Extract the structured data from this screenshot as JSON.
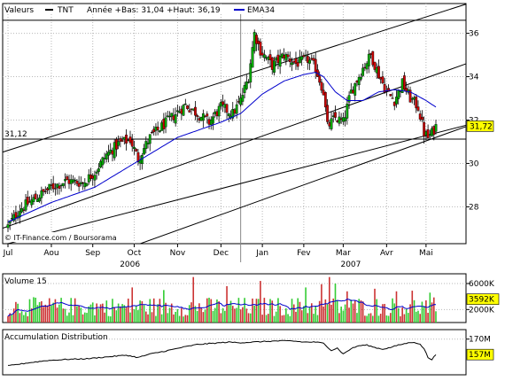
{
  "header": {
    "label_valeurs": "Valeurs",
    "ticker": "TNT",
    "range_text": "Année +Bas: 31,04 +Haut: 36,19",
    "ema_label": "EMA34",
    "colors": {
      "price": "#000000",
      "ema": "#0000cc"
    }
  },
  "source": "© IT-Finance.com / Boursorama",
  "ref_line": {
    "label": "31,12",
    "value": 31.12
  },
  "last_price": {
    "label": "31,72",
    "value": 31.72
  },
  "volume_panel": {
    "title": "Volume 15",
    "last_label": "3592K",
    "last_value": 3592
  },
  "ad_panel": {
    "title": "Accumulation Distribution",
    "last_label": "157M",
    "last_value": 157
  },
  "chart_data": [
    {
      "type": "candlestick",
      "title": "",
      "ylim": [
        26.3,
        36.8
      ],
      "y_ticks": [
        {
          "value": 28,
          "label": "28"
        },
        {
          "value": 30,
          "label": "30"
        },
        {
          "value": 32,
          "label": "32"
        },
        {
          "value": 34,
          "label": "34"
        },
        {
          "value": 36,
          "label": "36"
        }
      ],
      "x_months": [
        {
          "label": "Jul",
          "idx": 0
        },
        {
          "label": "Aou",
          "idx": 22
        },
        {
          "label": "Sep",
          "idx": 43
        },
        {
          "label": "Oct",
          "idx": 64
        },
        {
          "label": "Nov",
          "idx": 86
        },
        {
          "label": "Dec",
          "idx": 108
        },
        {
          "label": "Jan",
          "idx": 129
        },
        {
          "label": "Fev",
          "idx": 150
        },
        {
          "label": "Mar",
          "idx": 170
        },
        {
          "label": "Avr",
          "idx": 192
        },
        {
          "label": "Mai",
          "idx": 212
        }
      ],
      "x_years": [
        {
          "label": "2006",
          "idx": 56
        },
        {
          "label": "2007",
          "idx": 168
        }
      ],
      "year_divider_idx": 118,
      "num_days": 218,
      "close_path": [
        [
          0,
          27.1
        ],
        [
          6,
          27.9
        ],
        [
          14,
          28.4
        ],
        [
          22,
          28.9
        ],
        [
          30,
          29.2
        ],
        [
          38,
          29.1
        ],
        [
          44,
          29.6
        ],
        [
          50,
          30.4
        ],
        [
          56,
          30.9
        ],
        [
          62,
          31.1
        ],
        [
          66,
          30.2
        ],
        [
          72,
          31.2
        ],
        [
          78,
          31.7
        ],
        [
          84,
          32.2
        ],
        [
          90,
          32.7
        ],
        [
          96,
          32.3
        ],
        [
          102,
          31.9
        ],
        [
          108,
          32.6
        ],
        [
          114,
          32.3
        ],
        [
          118,
          32.9
        ],
        [
          122,
          34.0
        ],
        [
          125,
          36.0
        ],
        [
          128,
          35.2
        ],
        [
          134,
          34.5
        ],
        [
          140,
          35.0
        ],
        [
          146,
          34.6
        ],
        [
          152,
          34.8
        ],
        [
          156,
          34.4
        ],
        [
          160,
          33.3
        ],
        [
          162,
          31.7
        ],
        [
          166,
          32.1
        ],
        [
          170,
          31.9
        ],
        [
          174,
          33.3
        ],
        [
          180,
          34.4
        ],
        [
          184,
          35.0
        ],
        [
          188,
          34.1
        ],
        [
          192,
          33.3
        ],
        [
          196,
          32.9
        ],
        [
          200,
          33.7
        ],
        [
          204,
          33.0
        ],
        [
          208,
          32.6
        ],
        [
          211,
          31.4
        ],
        [
          213,
          31.2
        ],
        [
          215,
          31.4
        ],
        [
          217,
          31.72
        ]
      ],
      "ema_path": [
        [
          0,
          27.3
        ],
        [
          22,
          28.2
        ],
        [
          44,
          28.9
        ],
        [
          64,
          30.0
        ],
        [
          86,
          31.2
        ],
        [
          108,
          31.9
        ],
        [
          118,
          32.3
        ],
        [
          129,
          33.2
        ],
        [
          140,
          33.8
        ],
        [
          150,
          34.1
        ],
        [
          156,
          34.2
        ],
        [
          160,
          34.0
        ],
        [
          166,
          33.3
        ],
        [
          172,
          32.9
        ],
        [
          180,
          32.9
        ],
        [
          188,
          33.3
        ],
        [
          196,
          33.4
        ],
        [
          204,
          33.3
        ],
        [
          212,
          32.9
        ],
        [
          217,
          32.6
        ]
      ],
      "trend_lines": [
        {
          "name": "upper-channel",
          "p1": [
            0,
            30.6
          ],
          "p2": [
            217,
            36.9
          ]
        },
        {
          "name": "middle-channel",
          "p1": [
            0,
            27.1
          ],
          "p2": [
            217,
            34.1
          ]
        },
        {
          "name": "lower-channel",
          "p1": [
            0,
            26.3
          ],
          "p2": [
            217,
            31.4
          ]
        },
        {
          "name": "support-channel",
          "p1": [
            64,
            26.2
          ],
          "p2": [
            217,
            31.2
          ]
        }
      ],
      "top_line_value": 36.6
    },
    {
      "type": "bar",
      "title": "Volume 15",
      "unit": "K",
      "ylim": [
        0,
        7500
      ],
      "y_ticks": [
        {
          "value": 2000,
          "label": "2000K"
        },
        {
          "value": 6000,
          "label": "6000K"
        }
      ],
      "base_level": 2300,
      "spikes": [
        [
          63,
          5400
        ],
        [
          79,
          5000
        ],
        [
          94,
          7000
        ],
        [
          111,
          5600
        ],
        [
          128,
          6400
        ],
        [
          151,
          5400
        ],
        [
          159,
          5900
        ],
        [
          163,
          7000
        ],
        [
          166,
          6000
        ],
        [
          172,
          4800
        ],
        [
          186,
          5200
        ],
        [
          197,
          4800
        ],
        [
          205,
          4900
        ],
        [
          214,
          4600
        ]
      ],
      "colors": {
        "up": "#33cc33",
        "down": "#cc3333",
        "average": "#0000cc"
      }
    },
    {
      "type": "line",
      "title": "Accumulation Distribution",
      "unit": "M",
      "ylim": [
        140,
        178
      ],
      "y_ticks": [
        {
          "value": 170,
          "label": "170M"
        }
      ],
      "path": [
        [
          0,
          147.5
        ],
        [
          10,
          150
        ],
        [
          20,
          152
        ],
        [
          30,
          153
        ],
        [
          40,
          153.5
        ],
        [
          50,
          155
        ],
        [
          60,
          156.5
        ],
        [
          66,
          154.5
        ],
        [
          72,
          157.5
        ],
        [
          80,
          160
        ],
        [
          88,
          163
        ],
        [
          96,
          165.5
        ],
        [
          104,
          166.5
        ],
        [
          112,
          167.5
        ],
        [
          118,
          167
        ],
        [
          124,
          167.5
        ],
        [
          130,
          168
        ],
        [
          138,
          168.5
        ],
        [
          144,
          168.5
        ],
        [
          150,
          167.5
        ],
        [
          156,
          167.5
        ],
        [
          160,
          166.5
        ],
        [
          164,
          160.5
        ],
        [
          167,
          162.5
        ],
        [
          170,
          157.5
        ],
        [
          174,
          162
        ],
        [
          178,
          164.5
        ],
        [
          182,
          165
        ],
        [
          186,
          163
        ],
        [
          190,
          161.5
        ],
        [
          194,
          163
        ],
        [
          198,
          165
        ],
        [
          202,
          166.5
        ],
        [
          206,
          167.5
        ],
        [
          209,
          165.5
        ],
        [
          211,
          162
        ],
        [
          213,
          154.5
        ],
        [
          215,
          153
        ],
        [
          217,
          157
        ]
      ]
    }
  ]
}
